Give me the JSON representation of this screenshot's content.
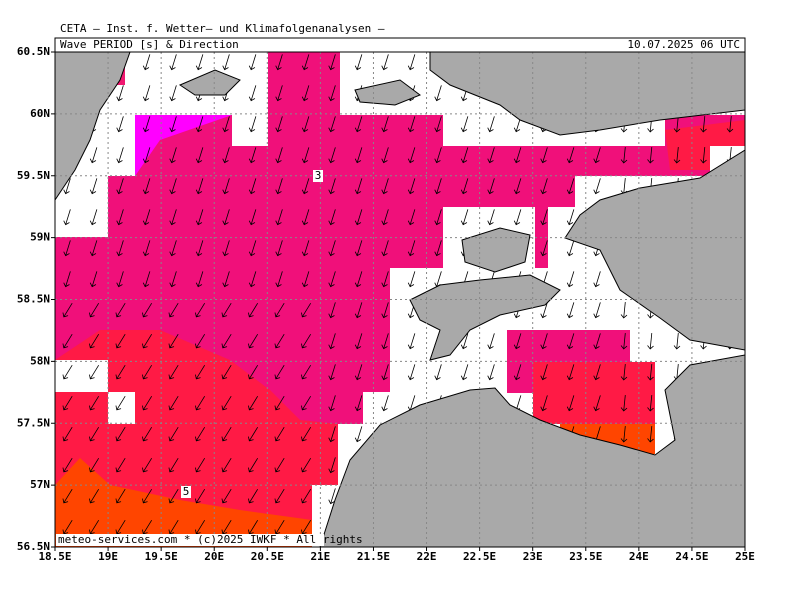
{
  "header": "CETA — Inst. f. Wetter— und Klimafolgenanalysen —",
  "map": {
    "title": "Wave PERIOD [s] & Direction",
    "timestamp": "10.07.2025 06 UTC",
    "footer": "meteo-services.com * (c)2025 IWKF * All rights",
    "contour_labels": [
      3,
      5
    ],
    "xlim": [
      18.5,
      25
    ],
    "ylim": [
      56.5,
      60.5
    ],
    "xticks": [
      {
        "value": 18.5,
        "label": "18.5E"
      },
      {
        "value": 19,
        "label": "19E"
      },
      {
        "value": 19.5,
        "label": "19.5E"
      },
      {
        "value": 20,
        "label": "20E"
      },
      {
        "value": 20.5,
        "label": "20.5E"
      },
      {
        "value": 21,
        "label": "21E"
      },
      {
        "value": 21.5,
        "label": "21.5E"
      },
      {
        "value": 22,
        "label": "22E"
      },
      {
        "value": 22.5,
        "label": "22.5E"
      },
      {
        "value": 23,
        "label": "23E"
      },
      {
        "value": 23.5,
        "label": "23.5E"
      },
      {
        "value": 24,
        "label": "24E"
      },
      {
        "value": 24.5,
        "label": "24.5E"
      },
      {
        "value": 25,
        "label": "25E"
      }
    ],
    "yticks": [
      {
        "value": 56.5,
        "label": "56.5N"
      },
      {
        "value": 57,
        "label": "57N"
      },
      {
        "value": 57.5,
        "label": "57.5N"
      },
      {
        "value": 58,
        "label": "58N"
      },
      {
        "value": 58.5,
        "label": "58.5N"
      },
      {
        "value": 59,
        "label": "59N"
      },
      {
        "value": 59.5,
        "label": "59.5N"
      },
      {
        "value": 60,
        "label": "60N"
      },
      {
        "value": 60.5,
        "label": "60.5N"
      }
    ]
  }
}
